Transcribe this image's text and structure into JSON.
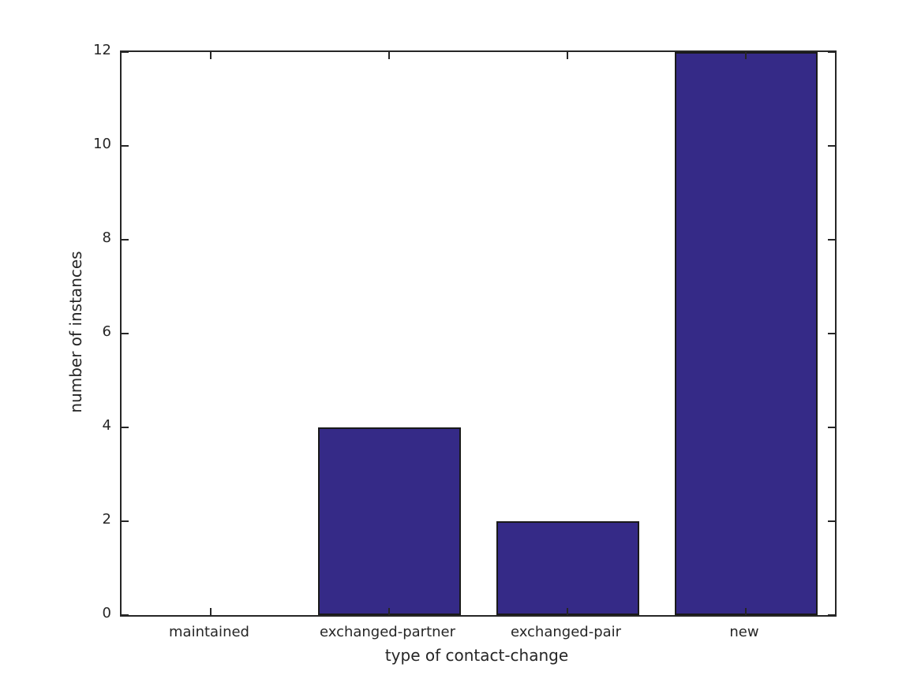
{
  "figure": {
    "background_color": "#ffffff"
  },
  "chart_data": {
    "type": "bar",
    "categories": [
      "maintained",
      "exchanged-partner",
      "exchanged-pair",
      "new"
    ],
    "values": [
      0,
      4,
      2,
      12
    ],
    "title": "",
    "xlabel": "type of contact-change",
    "ylabel": "number of instances",
    "ylim": [
      0,
      12
    ],
    "yticks": [
      0,
      2,
      4,
      6,
      8,
      10,
      12
    ],
    "ytick_labels": [
      "0",
      "2",
      "4",
      "6",
      "8",
      "10",
      "12"
    ],
    "bar_color": "#352a87",
    "bar_edge_color": "#1a1a1a",
    "axis_color": "#262626",
    "bar_width_fraction": 0.8,
    "grid": false,
    "legend_position": "none",
    "tick_direction": "in",
    "box": true
  }
}
